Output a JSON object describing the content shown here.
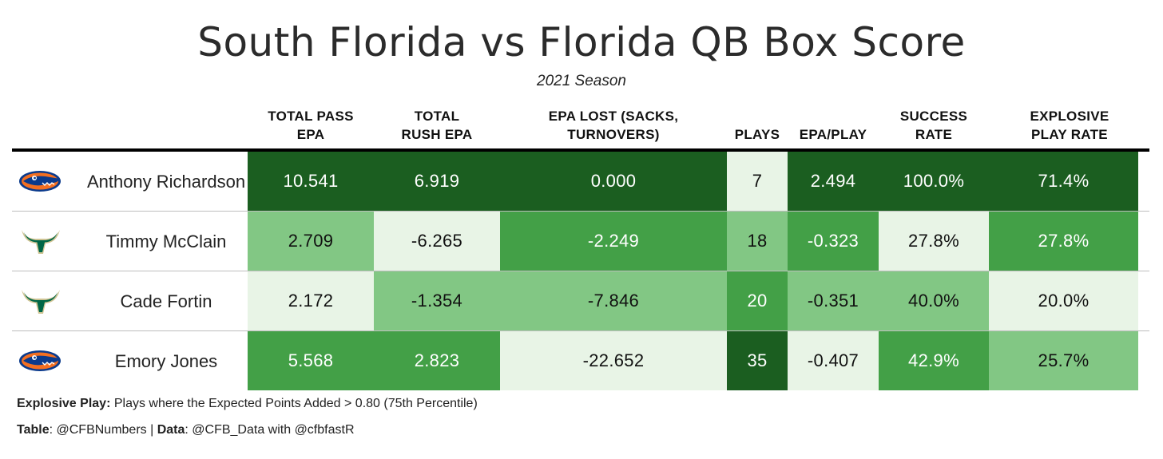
{
  "chart_data": {
    "type": "table",
    "title": "South Florida vs Florida QB Box Score",
    "subtitle": "2021 Season",
    "columns": [
      "TOTAL PASS EPA",
      "TOTAL RUSH EPA",
      "EPA LOST (SACKS, TURNOVERS)",
      "PLAYS",
      "EPA/PLAY",
      "SUCCESS RATE",
      "EXPLOSIVE PLAY RATE"
    ],
    "rows": [
      {
        "team_logo": "florida-gators-logo",
        "name": "Anthony Richardson",
        "values": [
          "10.541",
          "6.919",
          "0.000",
          "7",
          "2.494",
          "100.0%",
          "71.4%"
        ],
        "shades": [
          4,
          4,
          4,
          0,
          4,
          4,
          4
        ]
      },
      {
        "team_logo": "usf-bulls-logo",
        "name": "Timmy McClain",
        "values": [
          "2.709",
          "-6.265",
          "-2.249",
          "18",
          "-0.323",
          "27.8%",
          "27.8%"
        ],
        "shades": [
          1,
          0,
          2,
          1,
          2,
          0,
          2
        ]
      },
      {
        "team_logo": "usf-bulls-logo",
        "name": "Cade Fortin",
        "values": [
          "2.172",
          "-1.354",
          "-7.846",
          "20",
          "-0.351",
          "40.0%",
          "20.0%"
        ],
        "shades": [
          0,
          1,
          1,
          2,
          1,
          1,
          0
        ]
      },
      {
        "team_logo": "florida-gators-logo",
        "name": "Emory Jones",
        "values": [
          "5.568",
          "2.823",
          "-22.652",
          "35",
          "-0.407",
          "42.9%",
          "25.7%"
        ],
        "shades": [
          2,
          2,
          0,
          4,
          0,
          2,
          1
        ]
      }
    ]
  },
  "colors": {
    "shade_0": "#e8f4e6",
    "shade_1": "#82c784",
    "shade_2": "#43a047",
    "shade_4": "#1b5e20",
    "text_dark": "#111111",
    "text_light": "#ffffff",
    "gators_orange": "#f36f21",
    "gators_blue": "#0a3a8c",
    "bulls_green": "#006747",
    "bulls_gold": "#cfc493"
  },
  "footer": {
    "note_label": "Explosive Play:",
    "note_text": " Plays where the Expected Points Added > 0.80 (75th Percentile)",
    "table_label": "Table",
    "table_text": ": @CFBNumbers | ",
    "data_label": "Data",
    "data_text": ": @CFB_Data with @cfbfastR"
  }
}
